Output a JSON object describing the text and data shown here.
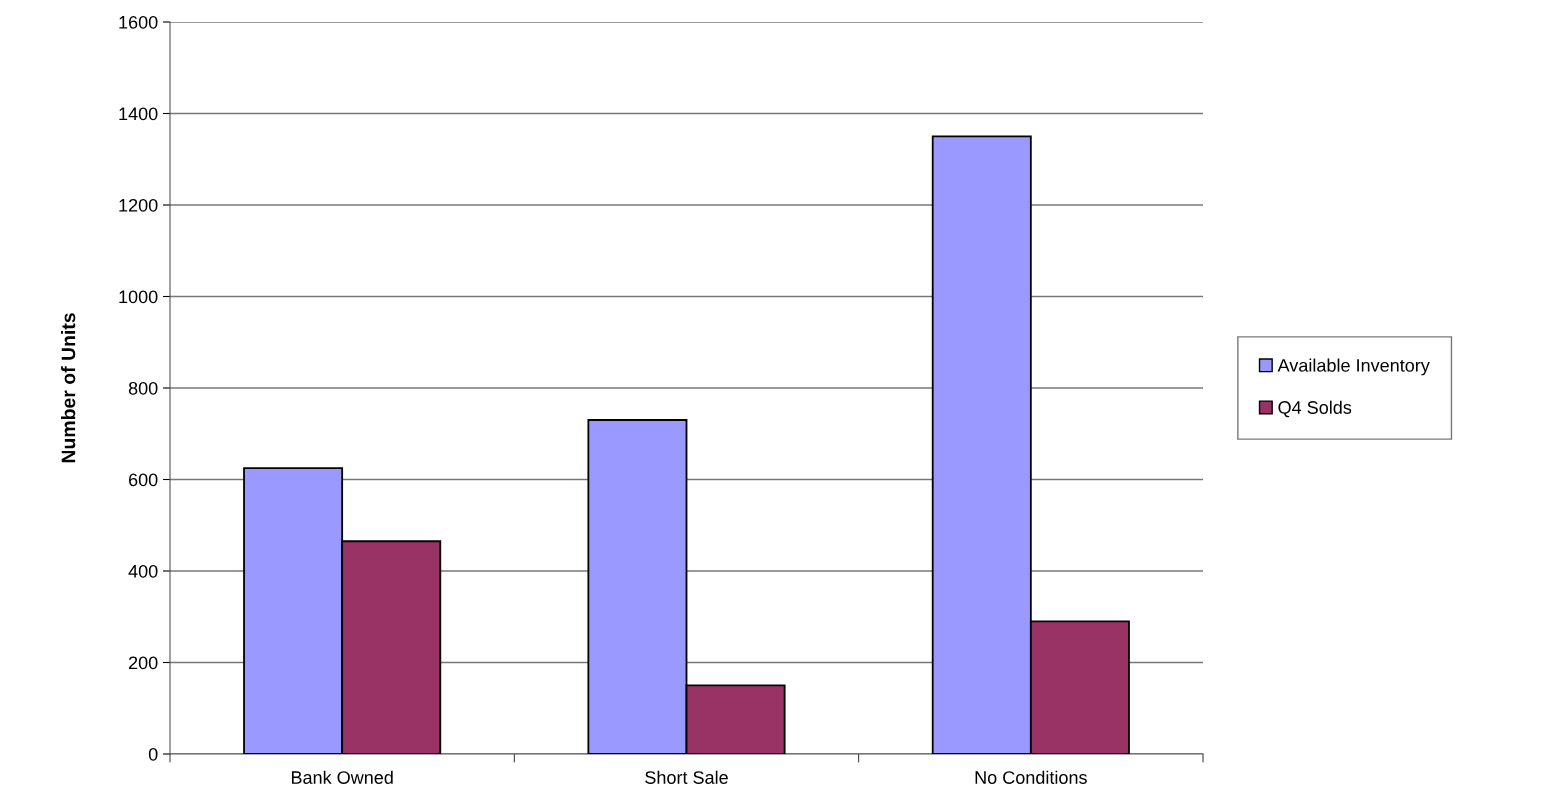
{
  "chart_data": {
    "type": "bar",
    "ylabel": "Number of Units",
    "categories": [
      "Bank Owned",
      "Short Sale",
      "No Conditions"
    ],
    "series": [
      {
        "name": "Available Inventory",
        "color": "#9999ff",
        "values": [
          625,
          730,
          1350
        ]
      },
      {
        "name": "Q4 Solds",
        "color": "#993366",
        "values": [
          465,
          150,
          290
        ]
      }
    ],
    "ylim": [
      0,
      1600
    ],
    "yticks": [
      0,
      200,
      400,
      600,
      800,
      1000,
      1200,
      1400,
      1600
    ],
    "grid": "y",
    "legend": "right"
  }
}
